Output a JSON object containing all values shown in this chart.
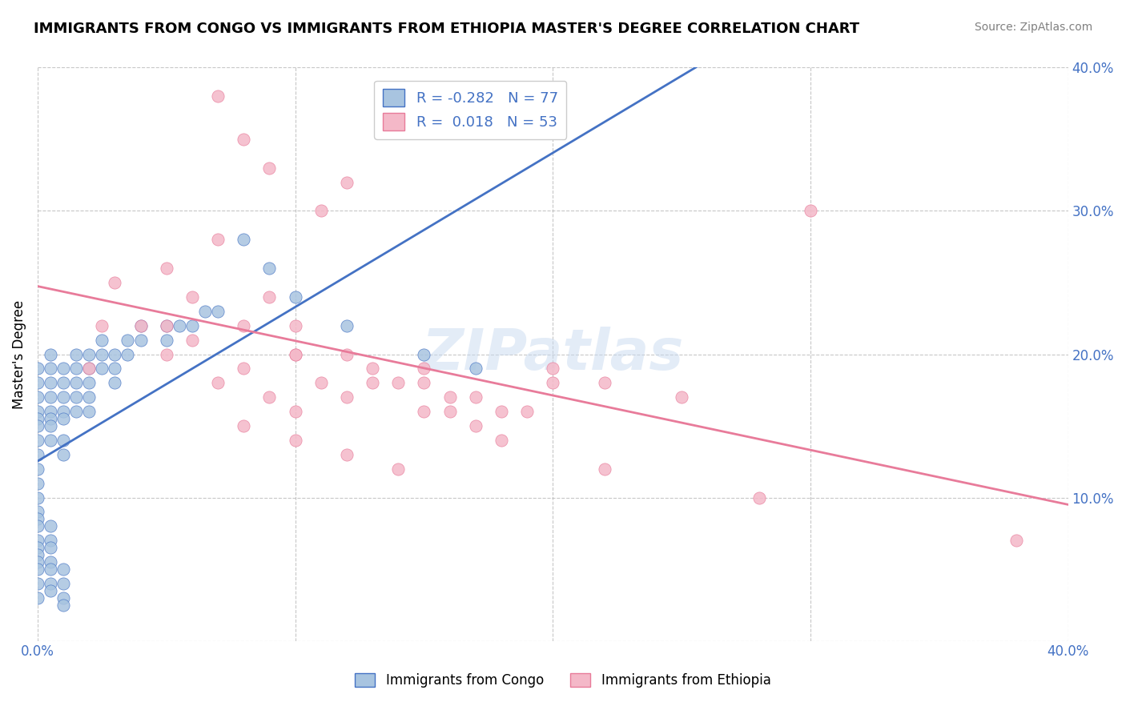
{
  "title": "IMMIGRANTS FROM CONGO VS IMMIGRANTS FROM ETHIOPIA MASTER'S DEGREE CORRELATION CHART",
  "source": "Source: ZipAtlas.com",
  "ylabel": "Master's Degree",
  "xlim": [
    0.0,
    0.4
  ],
  "ylim": [
    0.0,
    0.4
  ],
  "color_congo": "#a8c4e0",
  "color_ethiopia": "#f4b8c8",
  "line_color_congo": "#4472c4",
  "line_color_ethiopia": "#e87b9a",
  "watermark": "ZIPatlas",
  "title_fontsize": 13,
  "congo_scatter_x": [
    0.0,
    0.0,
    0.0,
    0.0,
    0.0,
    0.0,
    0.0,
    0.0,
    0.0,
    0.0,
    0.005,
    0.005,
    0.005,
    0.005,
    0.005,
    0.005,
    0.005,
    0.005,
    0.01,
    0.01,
    0.01,
    0.01,
    0.01,
    0.01,
    0.01,
    0.015,
    0.015,
    0.015,
    0.015,
    0.015,
    0.02,
    0.02,
    0.02,
    0.02,
    0.02,
    0.025,
    0.025,
    0.025,
    0.03,
    0.03,
    0.03,
    0.035,
    0.035,
    0.04,
    0.04,
    0.05,
    0.05,
    0.055,
    0.06,
    0.065,
    0.07,
    0.08,
    0.09,
    0.1,
    0.12,
    0.15,
    0.17,
    0.0,
    0.0,
    0.0,
    0.0,
    0.0,
    0.0,
    0.0,
    0.0,
    0.0,
    0.0,
    0.0,
    0.005,
    0.005,
    0.005,
    0.005,
    0.005,
    0.005,
    0.005,
    0.01,
    0.01,
    0.01,
    0.01
  ],
  "congo_scatter_y": [
    0.19,
    0.18,
    0.17,
    0.16,
    0.155,
    0.15,
    0.14,
    0.13,
    0.12,
    0.11,
    0.2,
    0.19,
    0.18,
    0.17,
    0.16,
    0.155,
    0.15,
    0.14,
    0.19,
    0.18,
    0.17,
    0.16,
    0.155,
    0.14,
    0.13,
    0.2,
    0.19,
    0.18,
    0.17,
    0.16,
    0.2,
    0.19,
    0.18,
    0.17,
    0.16,
    0.21,
    0.2,
    0.19,
    0.2,
    0.19,
    0.18,
    0.21,
    0.2,
    0.22,
    0.21,
    0.22,
    0.21,
    0.22,
    0.22,
    0.23,
    0.23,
    0.28,
    0.26,
    0.24,
    0.22,
    0.2,
    0.19,
    0.1,
    0.09,
    0.085,
    0.08,
    0.07,
    0.065,
    0.06,
    0.055,
    0.05,
    0.04,
    0.03,
    0.08,
    0.07,
    0.065,
    0.055,
    0.05,
    0.04,
    0.035,
    0.05,
    0.04,
    0.03,
    0.025
  ],
  "ethiopia_scatter_x": [
    0.02,
    0.025,
    0.03,
    0.04,
    0.05,
    0.06,
    0.07,
    0.08,
    0.09,
    0.1,
    0.11,
    0.12,
    0.13,
    0.14,
    0.15,
    0.16,
    0.17,
    0.18,
    0.05,
    0.07,
    0.09,
    0.1,
    0.12,
    0.15,
    0.17,
    0.19,
    0.08,
    0.1,
    0.12,
    0.14,
    0.2,
    0.22,
    0.25,
    0.3,
    0.38,
    0.05,
    0.1,
    0.15,
    0.2,
    0.08,
    0.12,
    0.07,
    0.09,
    0.11,
    0.06,
    0.08,
    0.1,
    0.13,
    0.16,
    0.18,
    0.22,
    0.28
  ],
  "ethiopia_scatter_y": [
    0.19,
    0.22,
    0.25,
    0.22,
    0.2,
    0.21,
    0.18,
    0.19,
    0.17,
    0.16,
    0.18,
    0.17,
    0.19,
    0.18,
    0.16,
    0.17,
    0.15,
    0.16,
    0.26,
    0.28,
    0.24,
    0.22,
    0.2,
    0.18,
    0.17,
    0.16,
    0.15,
    0.14,
    0.13,
    0.12,
    0.19,
    0.18,
    0.17,
    0.3,
    0.07,
    0.22,
    0.2,
    0.19,
    0.18,
    0.35,
    0.32,
    0.38,
    0.33,
    0.3,
    0.24,
    0.22,
    0.2,
    0.18,
    0.16,
    0.14,
    0.12,
    0.1
  ]
}
